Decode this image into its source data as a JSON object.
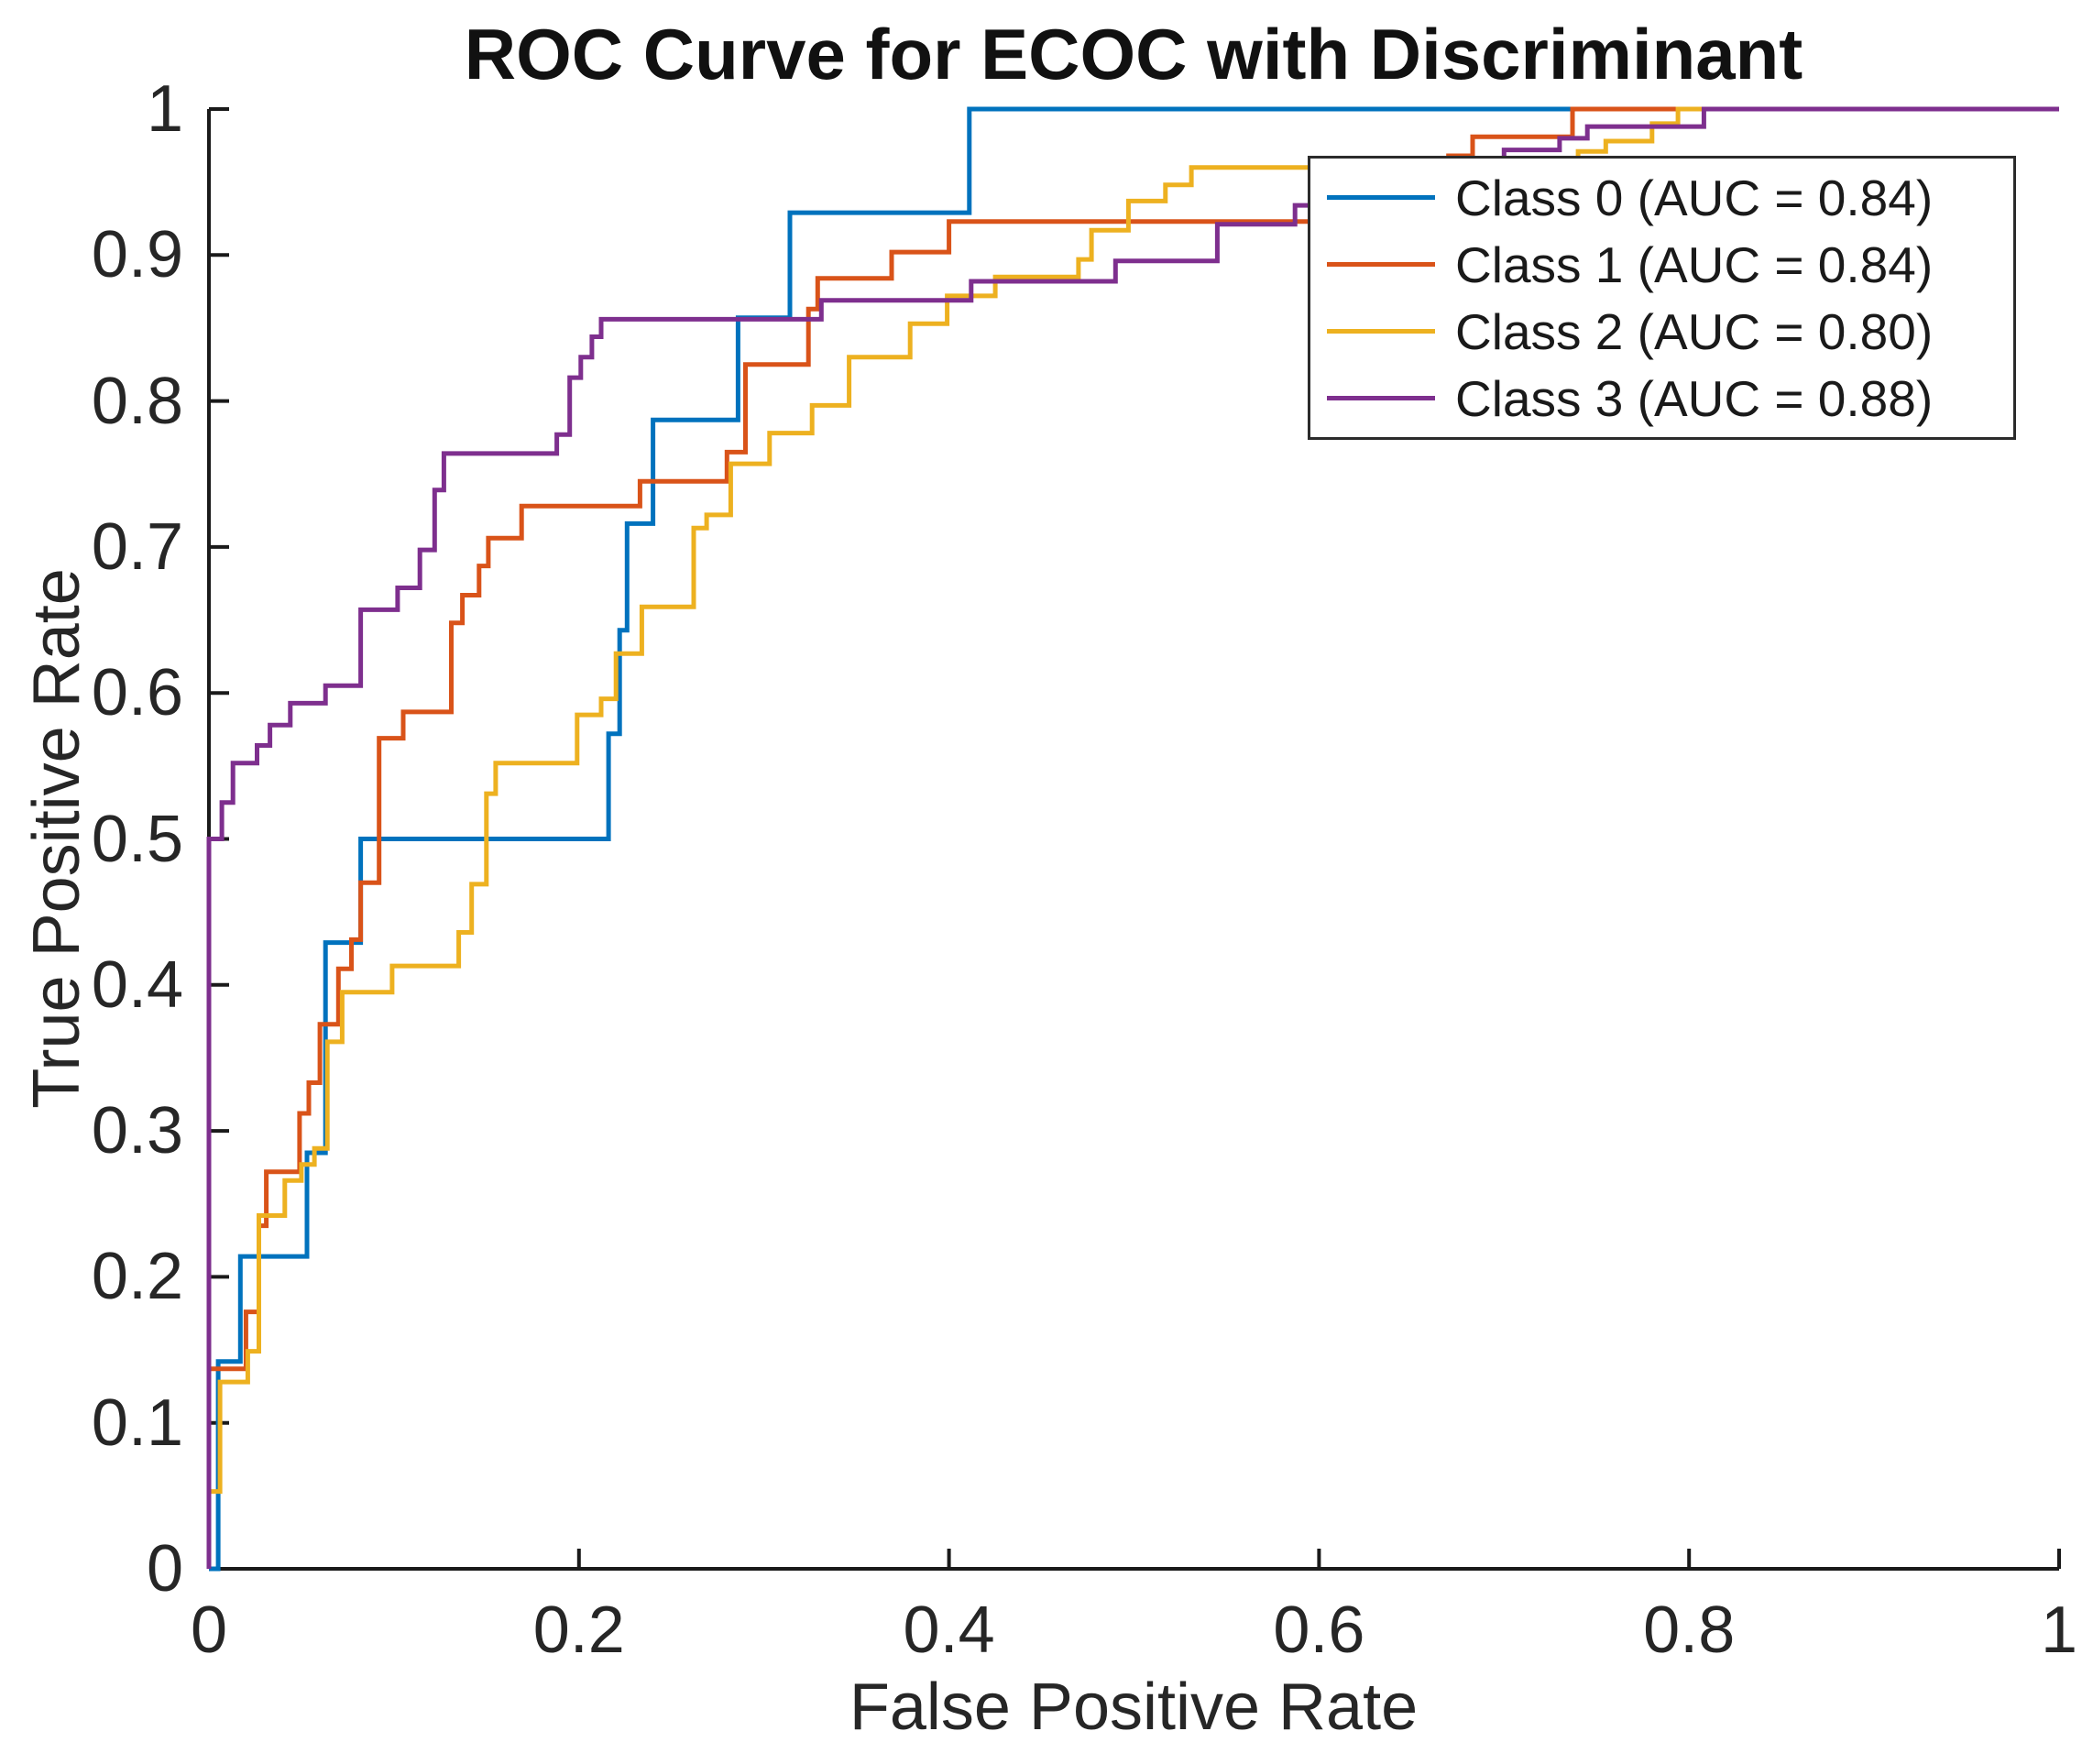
{
  "chart_data": {
    "type": "line",
    "subtype": "roc-step-curves",
    "title": "ROC Curve for ECOC with Discriminant",
    "xlabel": "False Positive Rate",
    "ylabel": "True Positive Rate",
    "xlim": [
      0,
      1
    ],
    "ylim": [
      0,
      1
    ],
    "grid": "off",
    "legend_position": "northeast",
    "axis_color": "#1a1a1a",
    "text_color": "#262626",
    "x_ticks": [
      "0",
      "0.2",
      "0.4",
      "0.6",
      "0.8",
      "1"
    ],
    "x_tick_values": [
      0,
      0.2,
      0.4,
      0.6,
      0.8,
      1
    ],
    "y_ticks": [
      "0",
      "0.1",
      "0.2",
      "0.3",
      "0.4",
      "0.5",
      "0.6",
      "0.7",
      "0.8",
      "0.9",
      "1"
    ],
    "y_tick_values": [
      0,
      0.1,
      0.2,
      0.3,
      0.4,
      0.5,
      0.6,
      0.7,
      0.8,
      0.9,
      1
    ],
    "series": [
      {
        "name": "Class 0",
        "label": "Class 0 (AUC = 0.84)",
        "auc": "0.84",
        "color": "#0072BD",
        "points": [
          [
            0,
            0
          ],
          [
            0.005,
            0
          ],
          [
            0.005,
            0.142
          ],
          [
            0.017,
            0.142
          ],
          [
            0.017,
            0.214
          ],
          [
            0.053,
            0.214
          ],
          [
            0.053,
            0.285
          ],
          [
            0.063,
            0.285
          ],
          [
            0.063,
            0.429
          ],
          [
            0.082,
            0.429
          ],
          [
            0.082,
            0.5
          ],
          [
            0.216,
            0.5
          ],
          [
            0.216,
            0.572
          ],
          [
            0.222,
            0.572
          ],
          [
            0.222,
            0.643
          ],
          [
            0.226,
            0.643
          ],
          [
            0.226,
            0.716
          ],
          [
            0.24,
            0.716
          ],
          [
            0.24,
            0.787
          ],
          [
            0.286,
            0.787
          ],
          [
            0.286,
            0.857
          ],
          [
            0.314,
            0.857
          ],
          [
            0.314,
            0.929
          ],
          [
            0.411,
            0.929
          ],
          [
            0.411,
            1
          ],
          [
            1,
            1
          ]
        ]
      },
      {
        "name": "Class 1",
        "label": "Class 1 (AUC = 0.84)",
        "auc": "0.84",
        "color": "#D95319",
        "points": [
          [
            0,
            0
          ],
          [
            0,
            0.137
          ],
          [
            0.02,
            0.137
          ],
          [
            0.02,
            0.176
          ],
          [
            0.027,
            0.176
          ],
          [
            0.027,
            0.235
          ],
          [
            0.031,
            0.235
          ],
          [
            0.031,
            0.272
          ],
          [
            0.049,
            0.272
          ],
          [
            0.049,
            0.312
          ],
          [
            0.054,
            0.312
          ],
          [
            0.054,
            0.333
          ],
          [
            0.06,
            0.333
          ],
          [
            0.06,
            0.373
          ],
          [
            0.07,
            0.373
          ],
          [
            0.07,
            0.411
          ],
          [
            0.077,
            0.411
          ],
          [
            0.077,
            0.431
          ],
          [
            0.082,
            0.431
          ],
          [
            0.082,
            0.47
          ],
          [
            0.092,
            0.47
          ],
          [
            0.092,
            0.569
          ],
          [
            0.105,
            0.569
          ],
          [
            0.105,
            0.587
          ],
          [
            0.131,
            0.587
          ],
          [
            0.131,
            0.648
          ],
          [
            0.137,
            0.648
          ],
          [
            0.137,
            0.667
          ],
          [
            0.146,
            0.667
          ],
          [
            0.146,
            0.687
          ],
          [
            0.151,
            0.687
          ],
          [
            0.151,
            0.706
          ],
          [
            0.169,
            0.706
          ],
          [
            0.169,
            0.728
          ],
          [
            0.233,
            0.728
          ],
          [
            0.233,
            0.745
          ],
          [
            0.28,
            0.745
          ],
          [
            0.28,
            0.765
          ],
          [
            0.29,
            0.765
          ],
          [
            0.29,
            0.825
          ],
          [
            0.324,
            0.825
          ],
          [
            0.324,
            0.863
          ],
          [
            0.329,
            0.863
          ],
          [
            0.329,
            0.884
          ],
          [
            0.369,
            0.884
          ],
          [
            0.369,
            0.902
          ],
          [
            0.4,
            0.902
          ],
          [
            0.4,
            0.923
          ],
          [
            0.62,
            0.923
          ],
          [
            0.62,
            0.942
          ],
          [
            0.65,
            0.942
          ],
          [
            0.65,
            0.955
          ],
          [
            0.67,
            0.955
          ],
          [
            0.67,
            0.968
          ],
          [
            0.683,
            0.968
          ],
          [
            0.683,
            0.981
          ],
          [
            0.737,
            0.981
          ],
          [
            0.737,
            1
          ],
          [
            1,
            1
          ]
        ]
      },
      {
        "name": "Class 2",
        "label": "Class 2 (AUC = 0.80)",
        "auc": "0.80",
        "color": "#EDB120",
        "points": [
          [
            0,
            0
          ],
          [
            0,
            0.053
          ],
          [
            0.006,
            0.053
          ],
          [
            0.006,
            0.128
          ],
          [
            0.021,
            0.128
          ],
          [
            0.021,
            0.149
          ],
          [
            0.027,
            0.149
          ],
          [
            0.027,
            0.242
          ],
          [
            0.041,
            0.242
          ],
          [
            0.041,
            0.266
          ],
          [
            0.05,
            0.266
          ],
          [
            0.05,
            0.277
          ],
          [
            0.057,
            0.277
          ],
          [
            0.057,
            0.288
          ],
          [
            0.064,
            0.288
          ],
          [
            0.064,
            0.361
          ],
          [
            0.072,
            0.361
          ],
          [
            0.072,
            0.395
          ],
          [
            0.099,
            0.395
          ],
          [
            0.099,
            0.413
          ],
          [
            0.135,
            0.413
          ],
          [
            0.135,
            0.436
          ],
          [
            0.142,
            0.436
          ],
          [
            0.142,
            0.469
          ],
          [
            0.15,
            0.469
          ],
          [
            0.15,
            0.531
          ],
          [
            0.155,
            0.531
          ],
          [
            0.155,
            0.552
          ],
          [
            0.199,
            0.552
          ],
          [
            0.199,
            0.585
          ],
          [
            0.212,
            0.585
          ],
          [
            0.212,
            0.596
          ],
          [
            0.22,
            0.596
          ],
          [
            0.22,
            0.627
          ],
          [
            0.234,
            0.627
          ],
          [
            0.234,
            0.659
          ],
          [
            0.262,
            0.659
          ],
          [
            0.262,
            0.713
          ],
          [
            0.269,
            0.713
          ],
          [
            0.269,
            0.722
          ],
          [
            0.282,
            0.722
          ],
          [
            0.282,
            0.757
          ],
          [
            0.303,
            0.757
          ],
          [
            0.303,
            0.778
          ],
          [
            0.326,
            0.778
          ],
          [
            0.326,
            0.797
          ],
          [
            0.346,
            0.797
          ],
          [
            0.346,
            0.83
          ],
          [
            0.379,
            0.83
          ],
          [
            0.379,
            0.853
          ],
          [
            0.399,
            0.853
          ],
          [
            0.399,
            0.872
          ],
          [
            0.425,
            0.872
          ],
          [
            0.425,
            0.885
          ],
          [
            0.47,
            0.885
          ],
          [
            0.47,
            0.897
          ],
          [
            0.477,
            0.897
          ],
          [
            0.477,
            0.917
          ],
          [
            0.497,
            0.917
          ],
          [
            0.497,
            0.937
          ],
          [
            0.517,
            0.937
          ],
          [
            0.517,
            0.948
          ],
          [
            0.531,
            0.948
          ],
          [
            0.531,
            0.96
          ],
          [
            0.65,
            0.96
          ],
          [
            0.65,
            0.966
          ],
          [
            0.74,
            0.966
          ],
          [
            0.74,
            0.971
          ],
          [
            0.755,
            0.971
          ],
          [
            0.755,
            0.978
          ],
          [
            0.78,
            0.978
          ],
          [
            0.78,
            0.99
          ],
          [
            0.794,
            0.99
          ],
          [
            0.794,
            1
          ],
          [
            1,
            1
          ]
        ]
      },
      {
        "name": "Class 3",
        "label": "Class 3 (AUC = 0.88)",
        "auc": "0.88",
        "color": "#7E2F8E",
        "points": [
          [
            0,
            0
          ],
          [
            0,
            0.5
          ],
          [
            0.007,
            0.5
          ],
          [
            0.007,
            0.525
          ],
          [
            0.013,
            0.525
          ],
          [
            0.013,
            0.552
          ],
          [
            0.026,
            0.552
          ],
          [
            0.026,
            0.564
          ],
          [
            0.033,
            0.564
          ],
          [
            0.033,
            0.578
          ],
          [
            0.044,
            0.578
          ],
          [
            0.044,
            0.593
          ],
          [
            0.063,
            0.593
          ],
          [
            0.063,
            0.605
          ],
          [
            0.082,
            0.605
          ],
          [
            0.082,
            0.657
          ],
          [
            0.102,
            0.657
          ],
          [
            0.102,
            0.672
          ],
          [
            0.114,
            0.672
          ],
          [
            0.114,
            0.698
          ],
          [
            0.122,
            0.698
          ],
          [
            0.122,
            0.739
          ],
          [
            0.127,
            0.739
          ],
          [
            0.127,
            0.764
          ],
          [
            0.188,
            0.764
          ],
          [
            0.188,
            0.777
          ],
          [
            0.195,
            0.777
          ],
          [
            0.195,
            0.816
          ],
          [
            0.201,
            0.816
          ],
          [
            0.201,
            0.83
          ],
          [
            0.207,
            0.83
          ],
          [
            0.207,
            0.844
          ],
          [
            0.212,
            0.844
          ],
          [
            0.212,
            0.856
          ],
          [
            0.331,
            0.856
          ],
          [
            0.331,
            0.869
          ],
          [
            0.412,
            0.869
          ],
          [
            0.412,
            0.882
          ],
          [
            0.49,
            0.882
          ],
          [
            0.49,
            0.896
          ],
          [
            0.545,
            0.896
          ],
          [
            0.545,
            0.921
          ],
          [
            0.587,
            0.921
          ],
          [
            0.587,
            0.934
          ],
          [
            0.63,
            0.934
          ],
          [
            0.63,
            0.947
          ],
          [
            0.66,
            0.947
          ],
          [
            0.66,
            0.96
          ],
          [
            0.7,
            0.96
          ],
          [
            0.7,
            0.972
          ],
          [
            0.73,
            0.972
          ],
          [
            0.73,
            0.98
          ],
          [
            0.745,
            0.98
          ],
          [
            0.745,
            0.988
          ],
          [
            0.808,
            0.988
          ],
          [
            0.808,
            1
          ],
          [
            1,
            1
          ]
        ]
      }
    ]
  }
}
